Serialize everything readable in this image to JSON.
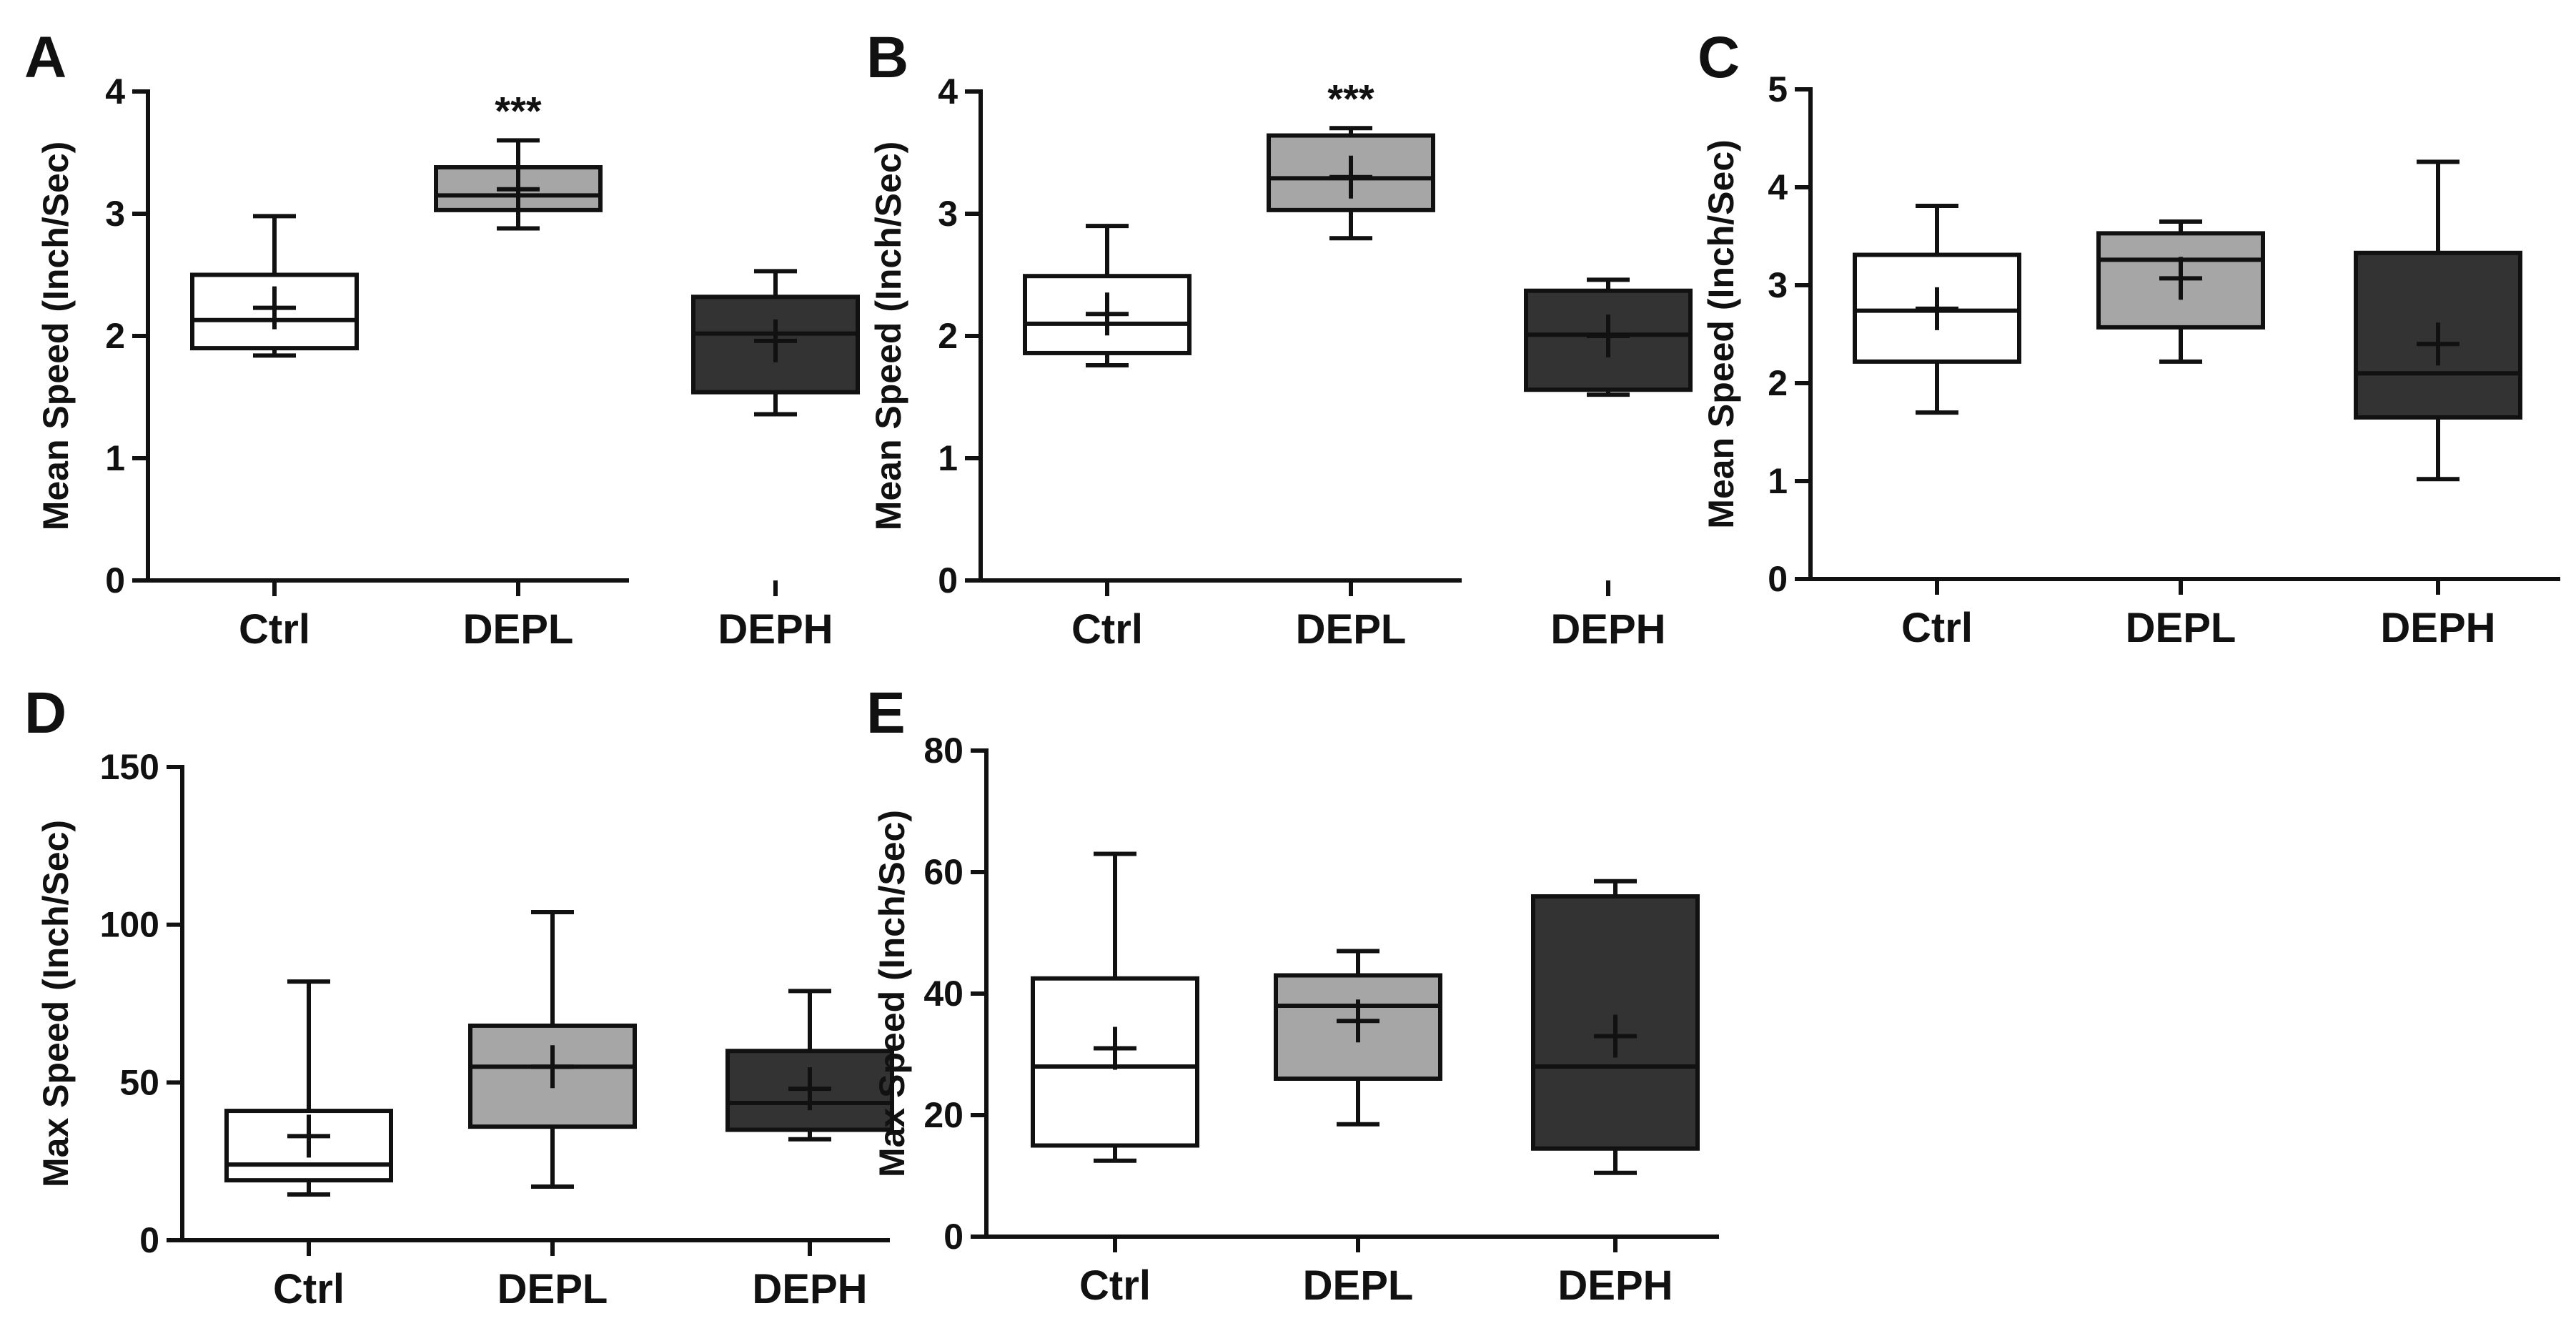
{
  "colors": {
    "Ctrl": "#ffffff",
    "DEPL": "#a6a6a6",
    "DEPH": "#333333",
    "line": "#111111"
  },
  "chart_data": [
    {
      "panel": "A",
      "type": "box",
      "ylabel": "Mean Speed (Inch/Sec)",
      "ylim": [
        0,
        4
      ],
      "yticks": [
        "0",
        "1",
        "2",
        "3",
        "4"
      ],
      "ytick_values": [
        0,
        1,
        2,
        3,
        4
      ],
      "categories": [
        "Ctrl",
        "DEPL",
        "DEPH"
      ],
      "boxes": [
        {
          "group": "Ctrl",
          "min": 1.84,
          "q1": 1.9,
          "median": 2.13,
          "q3": 2.5,
          "max": 2.98,
          "mean": 2.23
        },
        {
          "group": "DEPL",
          "min": 2.88,
          "q1": 3.03,
          "median": 3.15,
          "q3": 3.38,
          "max": 3.6,
          "mean": 3.2,
          "annotation": "***"
        },
        {
          "group": "DEPH",
          "min": 1.36,
          "q1": 1.54,
          "median": 2.02,
          "q3": 2.32,
          "max": 2.53,
          "mean": 1.96
        }
      ]
    },
    {
      "panel": "B",
      "type": "box",
      "ylabel": "Mean Speed (Inch/Sec)",
      "ylim": [
        0,
        4
      ],
      "yticks": [
        "0",
        "1",
        "2",
        "3",
        "4"
      ],
      "ytick_values": [
        0,
        1,
        2,
        3,
        4
      ],
      "categories": [
        "Ctrl",
        "DEPL",
        "DEPH"
      ],
      "boxes": [
        {
          "group": "Ctrl",
          "min": 1.76,
          "q1": 1.86,
          "median": 2.1,
          "q3": 2.49,
          "max": 2.9,
          "mean": 2.18
        },
        {
          "group": "DEPL",
          "min": 2.8,
          "q1": 3.03,
          "median": 3.29,
          "q3": 3.64,
          "max": 3.7,
          "mean": 3.3,
          "annotation": "***"
        },
        {
          "group": "DEPH",
          "min": 1.52,
          "q1": 1.56,
          "median": 2.01,
          "q3": 2.37,
          "max": 2.46,
          "mean": 2.0
        }
      ]
    },
    {
      "panel": "C",
      "type": "box",
      "ylabel": "Mean Speed (Inch/Sec)",
      "ylim": [
        0,
        5
      ],
      "yticks": [
        "0",
        "1",
        "2",
        "3",
        "4",
        "5"
      ],
      "ytick_values": [
        0,
        1,
        2,
        3,
        4,
        5
      ],
      "categories": [
        "Ctrl",
        "DEPL",
        "DEPH"
      ],
      "boxes": [
        {
          "group": "Ctrl",
          "min": 1.7,
          "q1": 2.22,
          "median": 2.74,
          "q3": 3.31,
          "max": 3.81,
          "mean": 2.76
        },
        {
          "group": "DEPL",
          "min": 2.22,
          "q1": 2.57,
          "median": 3.26,
          "q3": 3.53,
          "max": 3.65,
          "mean": 3.07
        },
        {
          "group": "DEPH",
          "min": 1.02,
          "q1": 1.65,
          "median": 2.1,
          "q3": 3.33,
          "max": 4.26,
          "mean": 2.4
        }
      ]
    },
    {
      "panel": "D",
      "type": "box",
      "ylabel": "Max Speed (Inch/Sec)",
      "ylim": [
        0,
        150
      ],
      "yticks": [
        "0",
        "50",
        "100",
        "150"
      ],
      "ytick_values": [
        0,
        50,
        100,
        150
      ],
      "categories": [
        "Ctrl",
        "DEPL",
        "DEPH"
      ],
      "boxes": [
        {
          "group": "Ctrl",
          "min": 14.5,
          "q1": 19,
          "median": 24,
          "q3": 41,
          "max": 82,
          "mean": 33
        },
        {
          "group": "DEPL",
          "min": 17,
          "q1": 36,
          "median": 55,
          "q3": 68,
          "max": 104,
          "mean": 55
        },
        {
          "group": "DEPH",
          "min": 32,
          "q1": 35,
          "median": 43.5,
          "q3": 60,
          "max": 79,
          "mean": 48
        }
      ]
    },
    {
      "panel": "E",
      "type": "box",
      "ylabel": "Max Speed (Inch/Sec)",
      "ylim": [
        0,
        80
      ],
      "yticks": [
        "0",
        "20",
        "40",
        "60",
        "80"
      ],
      "ytick_values": [
        0,
        20,
        40,
        60,
        80
      ],
      "categories": [
        "Ctrl",
        "DEPL",
        "DEPH"
      ],
      "boxes": [
        {
          "group": "Ctrl",
          "min": 12.5,
          "q1": 15,
          "median": 28,
          "q3": 42.5,
          "max": 63,
          "mean": 31
        },
        {
          "group": "DEPL",
          "min": 18.5,
          "q1": 26,
          "median": 38,
          "q3": 43,
          "max": 47,
          "mean": 35.5
        },
        {
          "group": "DEPH",
          "min": 10.5,
          "q1": 14.5,
          "median": 28,
          "q3": 56,
          "max": 58.5,
          "mean": 33
        }
      ]
    }
  ]
}
